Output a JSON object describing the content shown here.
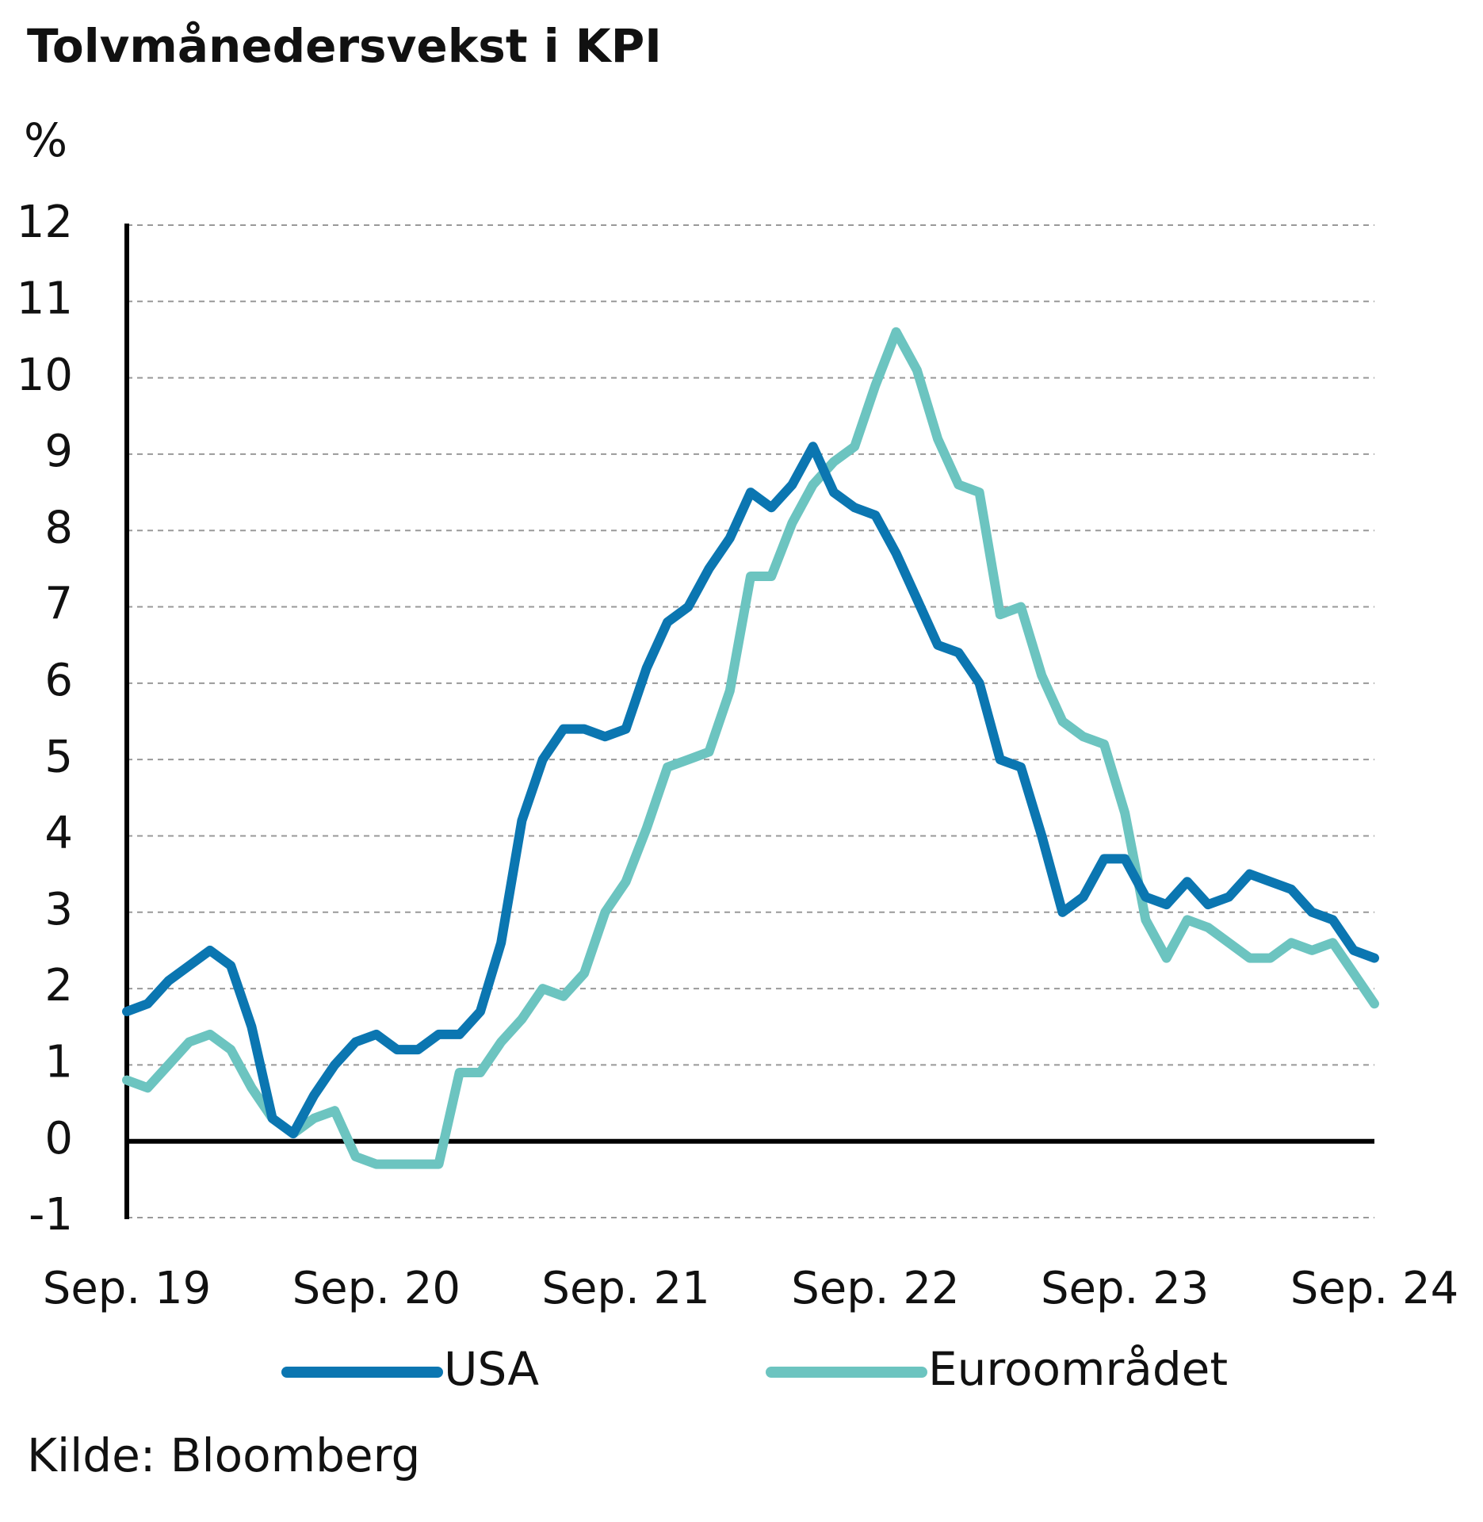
{
  "chart_data": {
    "type": "line",
    "title": "Tolvmånedersvekst i KPI",
    "y_label": "%",
    "source": "Kilde: Bloomberg",
    "categories": [
      "Sep. 19",
      null,
      null,
      null,
      null,
      null,
      null,
      null,
      null,
      null,
      null,
      null,
      "Sep. 20",
      null,
      null,
      null,
      null,
      null,
      null,
      null,
      null,
      null,
      null,
      null,
      "Sep. 21",
      null,
      null,
      null,
      null,
      null,
      null,
      null,
      null,
      null,
      null,
      null,
      "Sep. 22",
      null,
      null,
      null,
      null,
      null,
      null,
      null,
      null,
      null,
      null,
      null,
      "Sep. 23",
      null,
      null,
      null,
      null,
      null,
      null,
      null,
      null,
      null,
      null,
      null,
      "Sep. 24"
    ],
    "series": [
      {
        "name": "USA",
        "color": "#0b76b1",
        "values": [
          1.7,
          1.8,
          2.1,
          2.3,
          2.5,
          2.3,
          1.5,
          0.3,
          0.1,
          0.6,
          1.0,
          1.3,
          1.4,
          1.2,
          1.2,
          1.4,
          1.4,
          1.7,
          2.6,
          4.2,
          5.0,
          5.4,
          5.4,
          5.3,
          5.4,
          6.2,
          6.8,
          7.0,
          7.5,
          7.9,
          8.5,
          8.3,
          8.6,
          9.1,
          8.5,
          8.3,
          8.2,
          7.7,
          7.1,
          6.5,
          6.4,
          6.0,
          5.0,
          4.9,
          4.0,
          3.0,
          3.2,
          3.7,
          3.7,
          3.2,
          3.1,
          3.4,
          3.1,
          3.2,
          3.5,
          3.4,
          3.3,
          3.0,
          2.9,
          2.5,
          2.4
        ]
      },
      {
        "name": "Euroområdet",
        "color": "#6cc4c0",
        "values": [
          0.8,
          0.7,
          1.0,
          1.3,
          1.4,
          1.2,
          0.7,
          0.3,
          0.1,
          0.3,
          0.4,
          -0.2,
          -0.3,
          -0.3,
          -0.3,
          -0.3,
          0.9,
          0.9,
          1.3,
          1.6,
          2.0,
          1.9,
          2.2,
          3.0,
          3.4,
          4.1,
          4.9,
          5.0,
          5.1,
          5.9,
          7.4,
          7.4,
          8.1,
          8.6,
          8.9,
          9.1,
          9.9,
          10.6,
          10.1,
          9.2,
          8.6,
          8.5,
          6.9,
          7.0,
          6.1,
          5.5,
          5.3,
          5.2,
          4.3,
          2.9,
          2.4,
          2.9,
          2.8,
          2.6,
          2.4,
          2.4,
          2.6,
          2.5,
          2.6,
          2.2,
          1.8
        ]
      }
    ],
    "ylim": [
      -1,
      12
    ],
    "yticks": [
      -1,
      0,
      1,
      2,
      3,
      4,
      5,
      6,
      7,
      8,
      9,
      10,
      11,
      12
    ],
    "grid": true
  }
}
